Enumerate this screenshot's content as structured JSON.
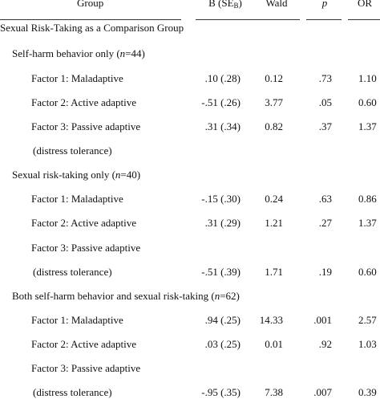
{
  "headers": {
    "group": "Group",
    "b": "B (SE",
    "b_sub": "B",
    "b_close": ")",
    "wald": "Wald",
    "p": "p",
    "or": "OR"
  },
  "sections": [
    {
      "title": "Sexual Risk-Taking as a Comparison Group"
    }
  ],
  "groups": [
    {
      "label": "Self-harm behavior only (",
      "n": "n",
      "nval": "=44)"
    },
    {
      "label": "Sexual risk-taking only (",
      "n": "n",
      "nval": "=40)"
    },
    {
      "label": "Both self-harm behavior and sexual risk-taking (",
      "n": "n",
      "nval": "=62)"
    }
  ],
  "rows": [
    {
      "factor": "Factor 1: Maladaptive",
      "b": ".10 (.28)",
      "wald": "0.12",
      "p": ".73",
      "or": "1.10"
    },
    {
      "factor": "Factor 2: Active adaptive",
      "b": "-.51 (.26)",
      "wald": "3.77",
      "p": ".05",
      "or": "0.60"
    },
    {
      "factor": "Factor 3: Passive adaptive",
      "b": ".31 (.34)",
      "wald": "0.82",
      "p": ".37",
      "or": "1.37"
    },
    {
      "factor": "(distress tolerance)"
    },
    {
      "factor": "Factor 1: Maladaptive",
      "b": "-.15 (.30)",
      "wald": "0.24",
      "p": ".63",
      "or": "0.86"
    },
    {
      "factor": "Factor 2: Active adaptive",
      "b": ".31 (.29)",
      "wald": "1.21",
      "p": ".27",
      "or": "1.37"
    },
    {
      "factor": "Factor 3: Passive adaptive"
    },
    {
      "factor": "(distress tolerance)",
      "b": "-.51 (.39)",
      "wald": "1.71",
      "p": ".19",
      "or": "0.60"
    },
    {
      "factor": "Factor 1: Maladaptive",
      "b": ".94 (.25)",
      "wald": "14.33",
      "p": ".001",
      "or": "2.57"
    },
    {
      "factor": "Factor 2: Active adaptive",
      "b": ".03 (.25)",
      "wald": "0.01",
      "p": ".92",
      "or": "1.03"
    },
    {
      "factor": "Factor 3: Passive adaptive"
    },
    {
      "factor": "(distress tolerance)",
      "b": "-.95 (.35)",
      "wald": "7.38",
      "p": ".007",
      "or": "0.39"
    }
  ]
}
